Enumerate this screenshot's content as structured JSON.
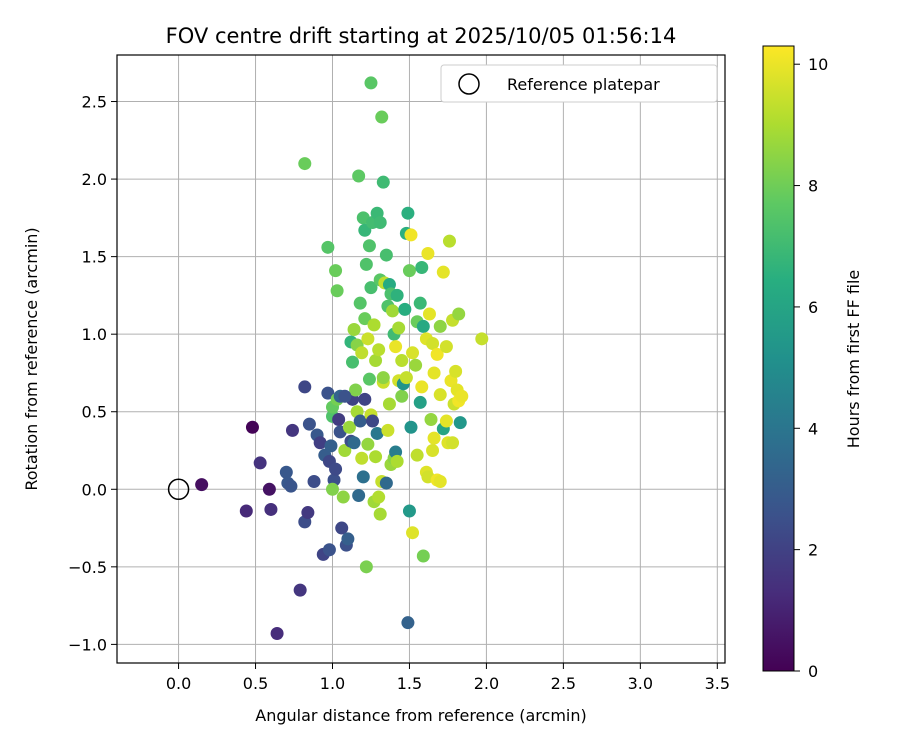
{
  "chart_data": {
    "type": "scatter",
    "title": "FOV centre drift starting at 2025/10/05 01:56:14",
    "xlabel": "Angular distance from reference (arcmin)",
    "ylabel": "Rotation from reference (arcmin)",
    "xlim": [
      -0.4,
      3.55
    ],
    "ylim": [
      -1.12,
      2.8
    ],
    "xticks": [
      0.0,
      0.5,
      1.0,
      1.5,
      2.0,
      2.5,
      3.0,
      3.5
    ],
    "xtick_labels": [
      "0.0",
      "0.5",
      "1.0",
      "1.5",
      "2.0",
      "2.5",
      "3.0",
      "3.5"
    ],
    "yticks": [
      -1.0,
      -0.5,
      0.0,
      0.5,
      1.0,
      1.5,
      2.0,
      2.5
    ],
    "ytick_labels": [
      "−1.0",
      "−0.5",
      "0.0",
      "0.5",
      "1.0",
      "1.5",
      "2.0",
      "2.5"
    ],
    "grid": true,
    "legend": {
      "label": "Reference platepar",
      "location": "top-right"
    },
    "reference_point": {
      "x": 0.0,
      "y": 0.0
    },
    "colorbar": {
      "label": "Hours from first FF file",
      "colormap": "viridis",
      "range": [
        0,
        10.3
      ],
      "ticks": [
        0,
        2,
        4,
        6,
        8,
        10
      ],
      "tick_labels": [
        "0",
        "2",
        "4",
        "6",
        "8",
        "10"
      ]
    },
    "points": [
      {
        "x": 0.15,
        "y": 0.03,
        "h": 0.4
      },
      {
        "x": 0.48,
        "y": 0.4,
        "h": 0.1
      },
      {
        "x": 0.44,
        "y": -0.14,
        "h": 1.2
      },
      {
        "x": 0.53,
        "y": 0.17,
        "h": 1.5
      },
      {
        "x": 0.59,
        "y": 0.0,
        "h": 0.5
      },
      {
        "x": 0.6,
        "y": -0.13,
        "h": 1.4
      },
      {
        "x": 0.64,
        "y": -0.93,
        "h": 1.3
      },
      {
        "x": 0.7,
        "y": 0.11,
        "h": 2.8
      },
      {
        "x": 0.71,
        "y": 0.04,
        "h": 2.8
      },
      {
        "x": 0.73,
        "y": 0.02,
        "h": 2.7
      },
      {
        "x": 0.74,
        "y": 0.38,
        "h": 1.6
      },
      {
        "x": 0.79,
        "y": -0.65,
        "h": 1.6
      },
      {
        "x": 0.82,
        "y": -0.21,
        "h": 2.4
      },
      {
        "x": 0.84,
        "y": -0.15,
        "h": 1.7
      },
      {
        "x": 0.82,
        "y": 0.66,
        "h": 2.2
      },
      {
        "x": 0.85,
        "y": 0.42,
        "h": 2.6
      },
      {
        "x": 0.88,
        "y": 0.05,
        "h": 2.4
      },
      {
        "x": 0.9,
        "y": 0.35,
        "h": 2.8
      },
      {
        "x": 0.92,
        "y": 0.3,
        "h": 1.9
      },
      {
        "x": 0.94,
        "y": -0.42,
        "h": 2.1
      },
      {
        "x": 0.95,
        "y": 0.22,
        "h": 3.0
      },
      {
        "x": 0.97,
        "y": 0.62,
        "h": 2.6
      },
      {
        "x": 0.98,
        "y": 0.18,
        "h": 2.2
      },
      {
        "x": 0.98,
        "y": -0.39,
        "h": 2.6
      },
      {
        "x": 0.99,
        "y": 0.28,
        "h": 3.1
      },
      {
        "x": 1.0,
        "y": 0.47,
        "h": 7.4
      },
      {
        "x": 1.0,
        "y": 0.53,
        "h": 7.8
      },
      {
        "x": 1.01,
        "y": 0.06,
        "h": 2.5
      },
      {
        "x": 1.02,
        "y": 0.13,
        "h": 2.3
      },
      {
        "x": 1.03,
        "y": 0.58,
        "h": 8.1
      },
      {
        "x": 1.04,
        "y": 0.45,
        "h": 1.8
      },
      {
        "x": 1.05,
        "y": 0.37,
        "h": 2.6
      },
      {
        "x": 1.06,
        "y": -0.25,
        "h": 2.2
      },
      {
        "x": 1.07,
        "y": -0.05,
        "h": 8.5
      },
      {
        "x": 1.08,
        "y": 0.25,
        "h": 8.8
      },
      {
        "x": 1.09,
        "y": -0.36,
        "h": 2.5
      },
      {
        "x": 1.1,
        "y": -0.32,
        "h": 3.1
      },
      {
        "x": 1.11,
        "y": 0.4,
        "h": 8.7
      },
      {
        "x": 1.12,
        "y": 0.31,
        "h": 2.4
      },
      {
        "x": 1.13,
        "y": 0.58,
        "h": 2.0
      },
      {
        "x": 1.14,
        "y": 0.3,
        "h": 3.5
      },
      {
        "x": 1.15,
        "y": 0.64,
        "h": 8.3
      },
      {
        "x": 1.16,
        "y": 0.5,
        "h": 8.9
      },
      {
        "x": 1.17,
        "y": -0.04,
        "h": 3.5
      },
      {
        "x": 1.18,
        "y": 0.44,
        "h": 3.0
      },
      {
        "x": 1.19,
        "y": 0.2,
        "h": 9.3
      },
      {
        "x": 1.2,
        "y": 0.08,
        "h": 3.8
      },
      {
        "x": 1.21,
        "y": 0.58,
        "h": 2.1
      },
      {
        "x": 1.22,
        "y": -0.5,
        "h": 8.2
      },
      {
        "x": 1.23,
        "y": 0.29,
        "h": 8.6
      },
      {
        "x": 1.24,
        "y": 0.71,
        "h": 7.6
      },
      {
        "x": 1.25,
        "y": 0.48,
        "h": 9.4
      },
      {
        "x": 1.26,
        "y": 0.44,
        "h": 2.2
      },
      {
        "x": 1.27,
        "y": -0.08,
        "h": 8.8
      },
      {
        "x": 1.28,
        "y": 0.21,
        "h": 9.0
      },
      {
        "x": 1.29,
        "y": 0.36,
        "h": 4.1
      },
      {
        "x": 1.3,
        "y": -0.05,
        "h": 9.1
      },
      {
        "x": 1.31,
        "y": -0.16,
        "h": 8.9
      },
      {
        "x": 1.32,
        "y": 0.05,
        "h": 9.4
      },
      {
        "x": 1.33,
        "y": 0.69,
        "h": 9.5
      },
      {
        "x": 1.35,
        "y": 0.04,
        "h": 3.5
      },
      {
        "x": 1.36,
        "y": 0.38,
        "h": 9.5
      },
      {
        "x": 1.37,
        "y": 0.55,
        "h": 8.9
      },
      {
        "x": 1.38,
        "y": 0.16,
        "h": 8.7
      },
      {
        "x": 1.4,
        "y": 0.2,
        "h": 8.4
      },
      {
        "x": 1.41,
        "y": 0.24,
        "h": 4.3
      },
      {
        "x": 1.42,
        "y": 0.18,
        "h": 9.0
      },
      {
        "x": 1.43,
        "y": 0.7,
        "h": 9.6
      },
      {
        "x": 1.45,
        "y": 0.6,
        "h": 8.3
      },
      {
        "x": 1.46,
        "y": 0.68,
        "h": 5.3
      },
      {
        "x": 1.48,
        "y": 0.72,
        "h": 9.4
      },
      {
        "x": 1.49,
        "y": -0.86,
        "h": 3.2
      },
      {
        "x": 1.5,
        "y": -0.14,
        "h": 5.5
      },
      {
        "x": 1.51,
        "y": 0.4,
        "h": 5.3
      },
      {
        "x": 1.52,
        "y": -0.28,
        "h": 9.8
      },
      {
        "x": 1.55,
        "y": 0.22,
        "h": 9.3
      },
      {
        "x": 1.57,
        "y": 0.56,
        "h": 5.8
      },
      {
        "x": 1.58,
        "y": 0.66,
        "h": 10.0
      },
      {
        "x": 1.59,
        "y": -0.43,
        "h": 8.1
      },
      {
        "x": 1.61,
        "y": 0.11,
        "h": 9.8
      },
      {
        "x": 1.62,
        "y": 0.08,
        "h": 9.6
      },
      {
        "x": 1.64,
        "y": 0.45,
        "h": 8.6
      },
      {
        "x": 1.65,
        "y": 0.25,
        "h": 9.7
      },
      {
        "x": 1.66,
        "y": 0.33,
        "h": 9.9
      },
      {
        "x": 1.68,
        "y": 0.06,
        "h": 10.1
      },
      {
        "x": 1.7,
        "y": 0.05,
        "h": 9.9
      },
      {
        "x": 1.7,
        "y": 0.61,
        "h": 9.7
      },
      {
        "x": 1.72,
        "y": 0.39,
        "h": 6.0
      },
      {
        "x": 1.74,
        "y": 0.44,
        "h": 9.9
      },
      {
        "x": 1.75,
        "y": 0.3,
        "h": 9.8
      },
      {
        "x": 1.77,
        "y": 0.7,
        "h": 10.0
      },
      {
        "x": 1.78,
        "y": 0.3,
        "h": 9.6
      },
      {
        "x": 1.79,
        "y": 0.55,
        "h": 9.5
      },
      {
        "x": 1.8,
        "y": 0.76,
        "h": 9.7
      },
      {
        "x": 1.81,
        "y": 0.64,
        "h": 9.9
      },
      {
        "x": 1.82,
        "y": 0.57,
        "h": 10.1
      },
      {
        "x": 1.83,
        "y": 0.43,
        "h": 5.4
      },
      {
        "x": 1.84,
        "y": 0.6,
        "h": 10.0
      },
      {
        "x": 1.97,
        "y": 0.97,
        "h": 9.4
      },
      {
        "x": 1.0,
        "y": 0.0,
        "h": 8.3
      },
      {
        "x": 1.05,
        "y": 0.6,
        "h": 3.3
      },
      {
        "x": 1.08,
        "y": 0.6,
        "h": 2.6
      },
      {
        "x": 1.12,
        "y": 0.95,
        "h": 6.7
      },
      {
        "x": 1.13,
        "y": 0.82,
        "h": 7.2
      },
      {
        "x": 1.14,
        "y": 1.03,
        "h": 8.7
      },
      {
        "x": 1.16,
        "y": 0.93,
        "h": 8.4
      },
      {
        "x": 1.18,
        "y": 1.2,
        "h": 7.5
      },
      {
        "x": 1.19,
        "y": 0.88,
        "h": 9.3
      },
      {
        "x": 1.21,
        "y": 1.1,
        "h": 7.9
      },
      {
        "x": 1.22,
        "y": 1.45,
        "h": 7.4
      },
      {
        "x": 1.23,
        "y": 0.97,
        "h": 9.5
      },
      {
        "x": 1.25,
        "y": 1.3,
        "h": 7.2
      },
      {
        "x": 1.27,
        "y": 1.06,
        "h": 9.0
      },
      {
        "x": 1.28,
        "y": 0.83,
        "h": 8.9
      },
      {
        "x": 1.3,
        "y": 0.9,
        "h": 9.2
      },
      {
        "x": 1.31,
        "y": 1.35,
        "h": 7.6
      },
      {
        "x": 1.33,
        "y": 0.72,
        "h": 8.5
      },
      {
        "x": 1.34,
        "y": 1.33,
        "h": 9.3
      },
      {
        "x": 1.36,
        "y": 1.18,
        "h": 7.4
      },
      {
        "x": 1.37,
        "y": 1.32,
        "h": 6.3
      },
      {
        "x": 1.39,
        "y": 1.15,
        "h": 8.8
      },
      {
        "x": 1.4,
        "y": 1.0,
        "h": 7.0
      },
      {
        "x": 1.41,
        "y": 0.92,
        "h": 10.0
      },
      {
        "x": 1.43,
        "y": 1.04,
        "h": 8.9
      },
      {
        "x": 1.45,
        "y": 0.83,
        "h": 9.2
      },
      {
        "x": 1.47,
        "y": 1.16,
        "h": 6.4
      },
      {
        "x": 1.48,
        "y": 1.65,
        "h": 6.5
      },
      {
        "x": 1.5,
        "y": 1.41,
        "h": 7.9
      },
      {
        "x": 1.51,
        "y": 1.64,
        "h": 10.1
      },
      {
        "x": 1.52,
        "y": 0.88,
        "h": 9.7
      },
      {
        "x": 1.54,
        "y": 0.8,
        "h": 8.7
      },
      {
        "x": 1.55,
        "y": 1.08,
        "h": 7.9
      },
      {
        "x": 1.57,
        "y": 1.2,
        "h": 6.9
      },
      {
        "x": 1.58,
        "y": 1.43,
        "h": 6.8
      },
      {
        "x": 1.59,
        "y": 1.05,
        "h": 6.2
      },
      {
        "x": 1.61,
        "y": 0.97,
        "h": 9.8
      },
      {
        "x": 1.62,
        "y": 1.52,
        "h": 10.0
      },
      {
        "x": 1.63,
        "y": 1.13,
        "h": 9.9
      },
      {
        "x": 1.65,
        "y": 0.94,
        "h": 9.6
      },
      {
        "x": 1.66,
        "y": 0.75,
        "h": 9.9
      },
      {
        "x": 1.68,
        "y": 0.87,
        "h": 10.1
      },
      {
        "x": 1.7,
        "y": 1.05,
        "h": 8.5
      },
      {
        "x": 1.72,
        "y": 1.4,
        "h": 9.9
      },
      {
        "x": 1.74,
        "y": 0.92,
        "h": 9.6
      },
      {
        "x": 1.76,
        "y": 1.6,
        "h": 9.2
      },
      {
        "x": 1.78,
        "y": 1.09,
        "h": 9.4
      },
      {
        "x": 1.82,
        "y": 1.13,
        "h": 8.6
      },
      {
        "x": 0.97,
        "y": 1.56,
        "h": 7.5
      },
      {
        "x": 1.02,
        "y": 1.41,
        "h": 7.9
      },
      {
        "x": 1.03,
        "y": 1.28,
        "h": 7.9
      },
      {
        "x": 1.17,
        "y": 2.02,
        "h": 7.7
      },
      {
        "x": 1.2,
        "y": 1.75,
        "h": 7.3
      },
      {
        "x": 1.21,
        "y": 1.67,
        "h": 6.8
      },
      {
        "x": 1.24,
        "y": 1.57,
        "h": 7.4
      },
      {
        "x": 1.26,
        "y": 1.72,
        "h": 7.1
      },
      {
        "x": 1.29,
        "y": 1.78,
        "h": 6.9
      },
      {
        "x": 1.31,
        "y": 1.72,
        "h": 7.0
      },
      {
        "x": 1.33,
        "y": 1.98,
        "h": 7.0
      },
      {
        "x": 1.35,
        "y": 1.51,
        "h": 7.2
      },
      {
        "x": 1.38,
        "y": 1.26,
        "h": 7.3
      },
      {
        "x": 1.42,
        "y": 1.25,
        "h": 6.6
      },
      {
        "x": 1.49,
        "y": 1.78,
        "h": 6.5
      },
      {
        "x": 0.82,
        "y": 2.1,
        "h": 7.9
      },
      {
        "x": 1.25,
        "y": 2.62,
        "h": 7.6
      },
      {
        "x": 1.32,
        "y": 2.4,
        "h": 7.9
      }
    ]
  }
}
